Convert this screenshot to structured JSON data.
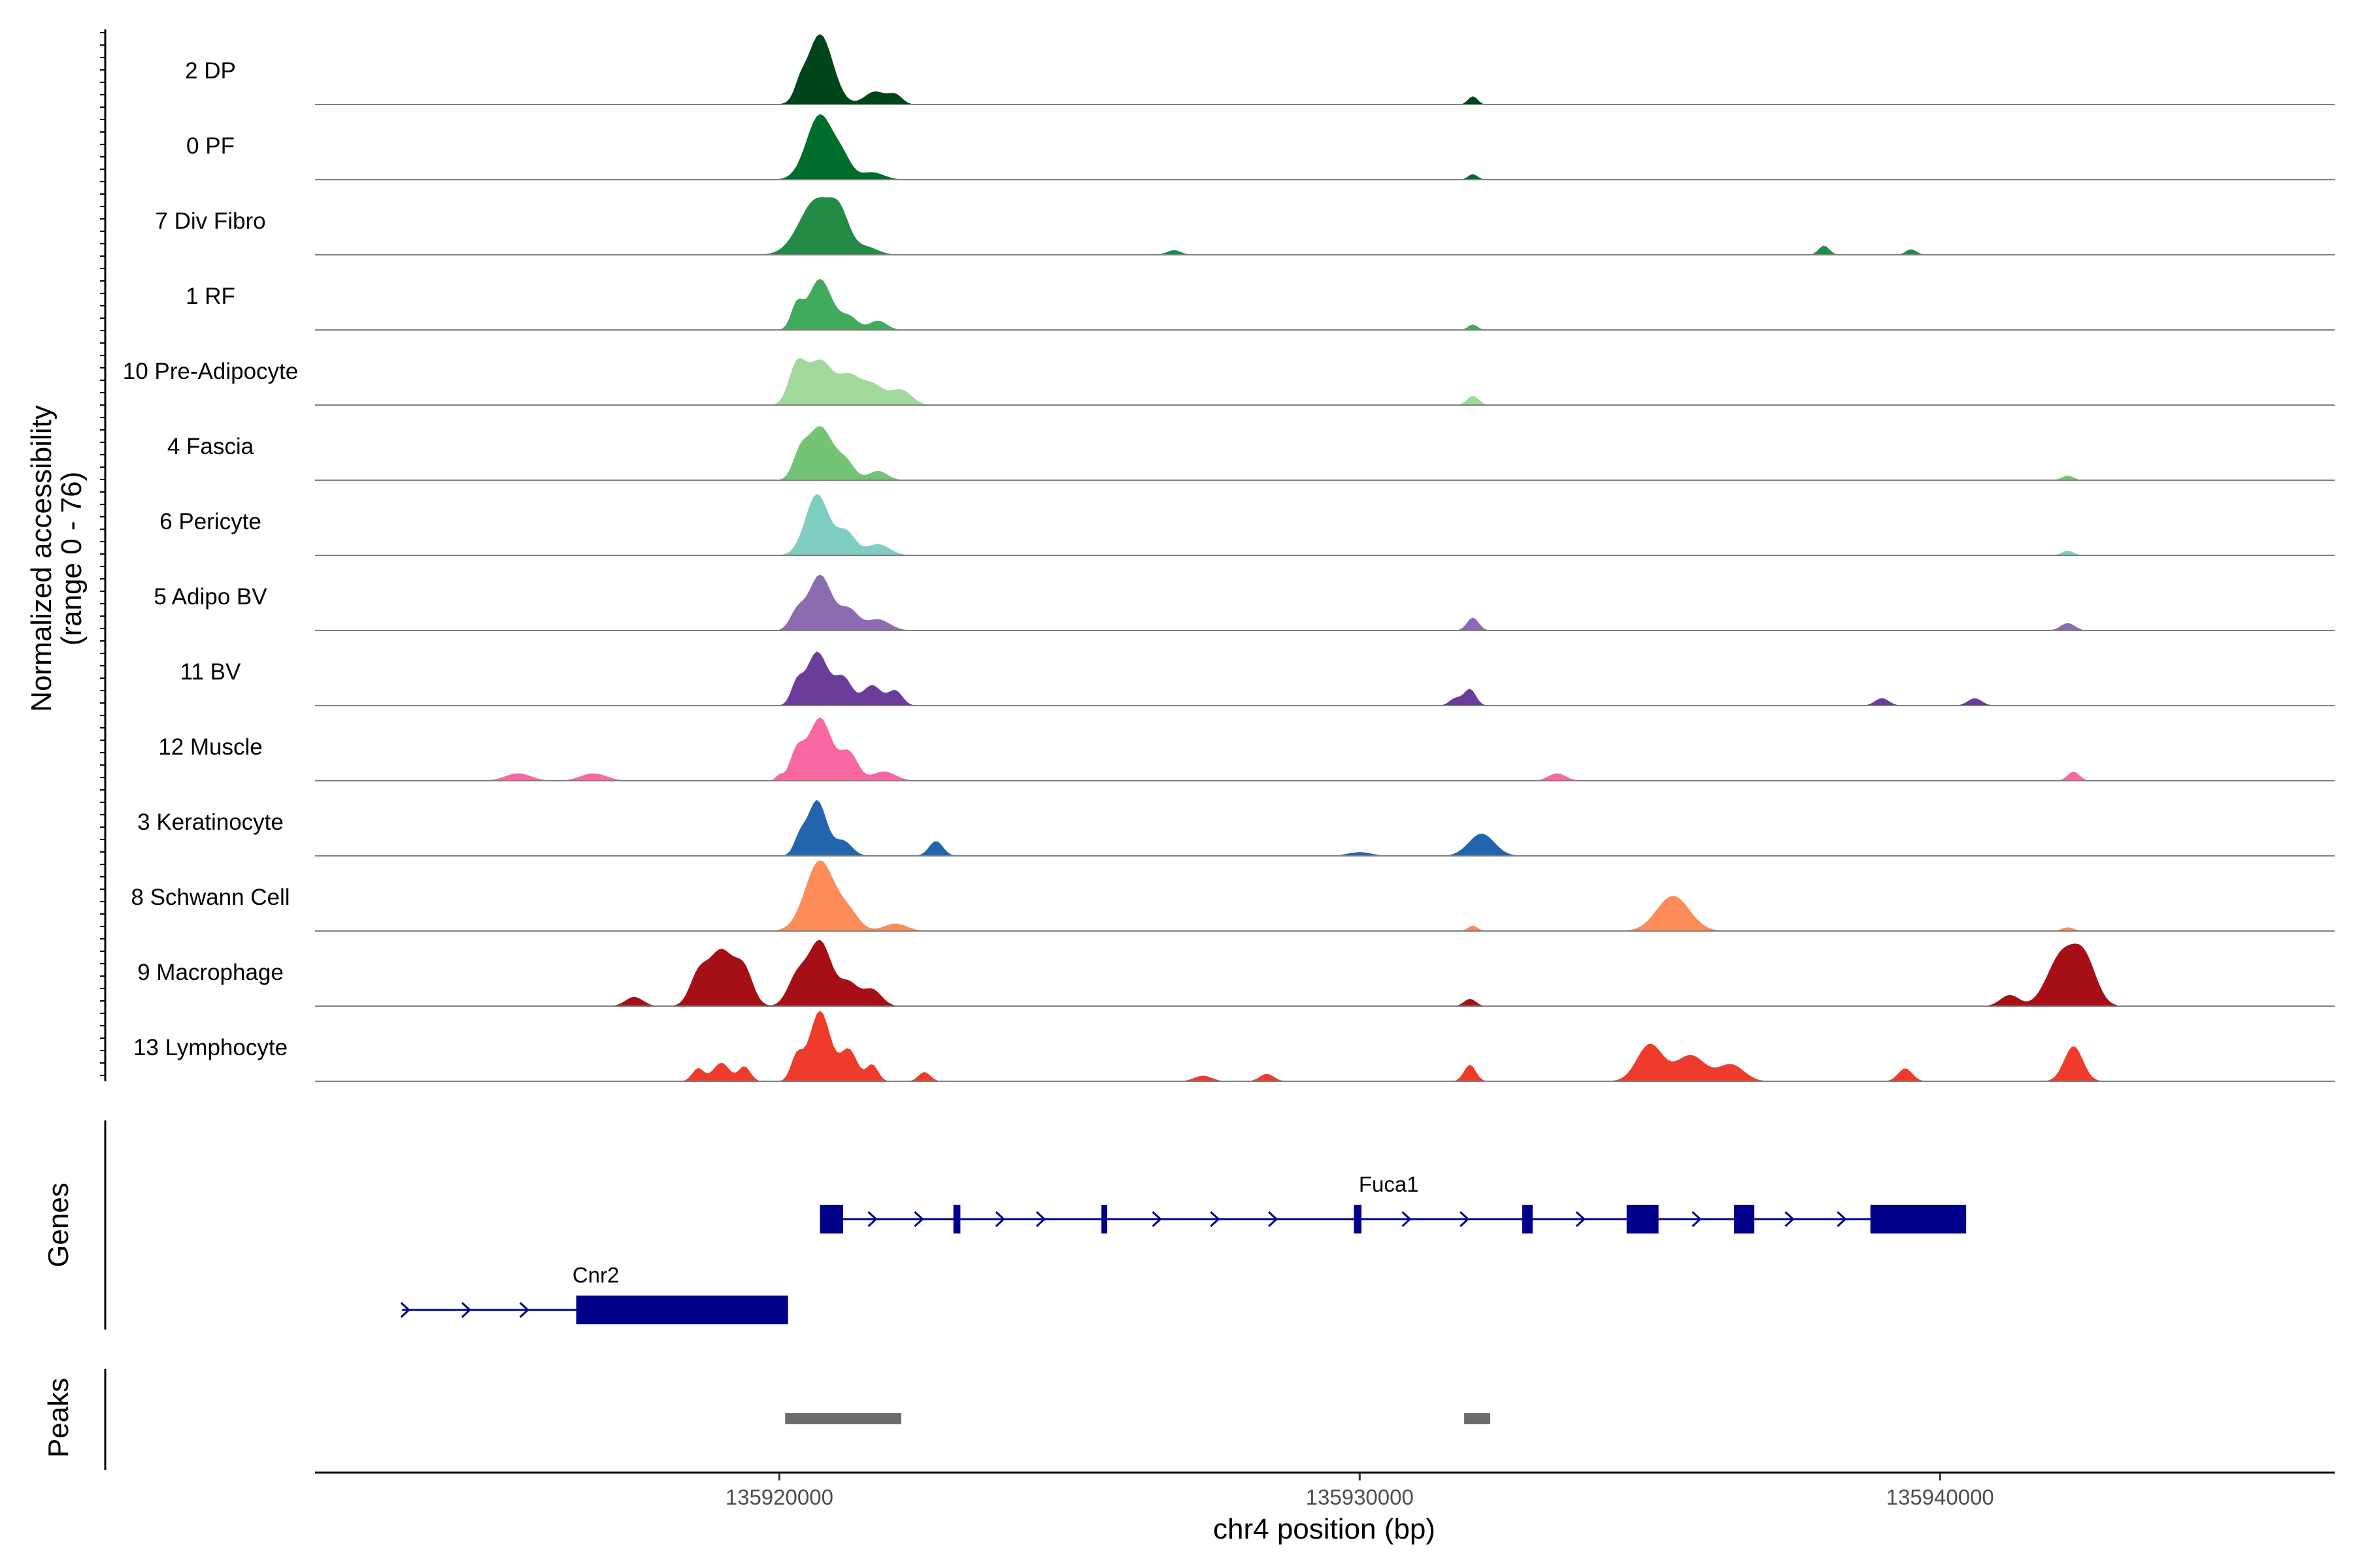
{
  "chart_data": {
    "type": "area",
    "title": "",
    "chromosome": "chr4",
    "xlabel": "chr4 position (bp)",
    "ylabel": "Normalized accessibility",
    "ylabel2": "(range 0 - 76)",
    "y_range": [
      0,
      76
    ],
    "xlim": [
      135912000,
      135946800
    ],
    "x_ticks": [
      135920000,
      135930000,
      135940000
    ],
    "x_tick_labels": [
      "135920000",
      "135930000",
      "135940000"
    ],
    "tracks": [
      {
        "name": "2 DP",
        "color": "#00441b",
        "peaks": [
          [
            135920700,
            76,
            220
          ],
          [
            135920350,
            12,
            90
          ],
          [
            135921650,
            14,
            180
          ],
          [
            135922000,
            10,
            120
          ],
          [
            135931950,
            9,
            80
          ]
        ]
      },
      {
        "name": "0 PF",
        "color": "#006d2c",
        "peaks": [
          [
            135920700,
            70,
            230
          ],
          [
            135921100,
            18,
            150
          ],
          [
            135921600,
            8,
            200
          ],
          [
            135931950,
            6,
            80
          ]
        ]
      },
      {
        "name": "7 Div Fibro",
        "color": "#238b45",
        "peaks": [
          [
            135920650,
            60,
            300
          ],
          [
            135921050,
            30,
            160
          ],
          [
            135921500,
            8,
            200
          ],
          [
            135938000,
            10,
            90
          ],
          [
            135939500,
            6,
            90
          ],
          [
            135926800,
            5,
            120
          ]
        ]
      },
      {
        "name": "1 RF",
        "color": "#41ab5d",
        "peaks": [
          [
            135920300,
            25,
            100
          ],
          [
            135920700,
            55,
            200
          ],
          [
            135921200,
            14,
            150
          ],
          [
            135921700,
            10,
            150
          ],
          [
            135931950,
            6,
            80
          ]
        ]
      },
      {
        "name": "10 Pre-Adipocyte",
        "color": "#a1d99b",
        "peaks": [
          [
            135920300,
            40,
            140
          ],
          [
            135920700,
            48,
            220
          ],
          [
            135921200,
            28,
            180
          ],
          [
            135921600,
            22,
            200
          ],
          [
            135922100,
            16,
            180
          ],
          [
            135931950,
            10,
            100
          ]
        ]
      },
      {
        "name": "4 Fascia",
        "color": "#74c476",
        "peaks": [
          [
            135920350,
            22,
            120
          ],
          [
            135920700,
            58,
            220
          ],
          [
            135921150,
            18,
            150
          ],
          [
            135921700,
            10,
            160
          ],
          [
            135942200,
            5,
            100
          ]
        ]
      },
      {
        "name": "6 Pericyte",
        "color": "#80cdc1",
        "peaks": [
          [
            135920650,
            66,
            200
          ],
          [
            135921150,
            25,
            160
          ],
          [
            135921700,
            12,
            200
          ],
          [
            135942200,
            5,
            100
          ]
        ]
      },
      {
        "name": "5 Adipo BV",
        "color": "#8c6bb1",
        "peaks": [
          [
            135920300,
            18,
            120
          ],
          [
            135920700,
            60,
            200
          ],
          [
            135921200,
            22,
            160
          ],
          [
            135921700,
            12,
            200
          ],
          [
            135931950,
            14,
            100
          ],
          [
            135942200,
            8,
            120
          ]
        ]
      },
      {
        "name": "11 BV",
        "color": "#6a3d9a",
        "peaks": [
          [
            135920300,
            22,
            100
          ],
          [
            135920650,
            58,
            180
          ],
          [
            135921100,
            30,
            150
          ],
          [
            135921600,
            22,
            160
          ],
          [
            135922000,
            16,
            120
          ],
          [
            135931900,
            18,
            100
          ],
          [
            135931650,
            8,
            100
          ],
          [
            135939000,
            8,
            120
          ],
          [
            135940600,
            8,
            120
          ]
        ]
      },
      {
        "name": "12 Muscle",
        "color": "#f768a1",
        "peaks": [
          [
            135920300,
            30,
            120
          ],
          [
            135920700,
            68,
            200
          ],
          [
            135921200,
            30,
            150
          ],
          [
            135921800,
            10,
            200
          ],
          [
            135915500,
            8,
            220
          ],
          [
            135916800,
            8,
            220
          ],
          [
            135920000,
            6,
            60
          ],
          [
            135933400,
            8,
            150
          ],
          [
            135942300,
            10,
            100
          ]
        ]
      },
      {
        "name": "3 Keratinocyte",
        "color": "#2166ac",
        "peaks": [
          [
            135920350,
            18,
            100
          ],
          [
            135920650,
            60,
            160
          ],
          [
            135921100,
            16,
            150
          ],
          [
            135922700,
            16,
            120
          ],
          [
            135932100,
            24,
            220
          ],
          [
            135930000,
            4,
            200
          ]
        ]
      },
      {
        "name": "8 Schwann Cell",
        "color": "#fc8d59",
        "peaks": [
          [
            135920700,
            76,
            250
          ],
          [
            135921200,
            18,
            180
          ],
          [
            135922000,
            8,
            200
          ],
          [
            135935400,
            38,
            280
          ],
          [
            135931950,
            6,
            80
          ],
          [
            135942200,
            4,
            100
          ]
        ]
      },
      {
        "name": "9 Macrophage",
        "color": "#a50f15",
        "peaks": [
          [
            135919000,
            60,
            220
          ],
          [
            135918600,
            30,
            150
          ],
          [
            135919400,
            35,
            150
          ],
          [
            135920300,
            30,
            160
          ],
          [
            135920700,
            70,
            200
          ],
          [
            135921200,
            24,
            160
          ],
          [
            135921600,
            18,
            160
          ],
          [
            135942100,
            55,
            250
          ],
          [
            135942500,
            45,
            200
          ],
          [
            135941200,
            12,
            160
          ],
          [
            135917500,
            10,
            150
          ],
          [
            135931900,
            8,
            100
          ]
        ]
      },
      {
        "name": "13 Lymphocyte",
        "color": "#ef3b2c",
        "peaks": [
          [
            135920700,
            76,
            180
          ],
          [
            135920300,
            26,
            100
          ],
          [
            135921200,
            34,
            140
          ],
          [
            135921600,
            18,
            100
          ],
          [
            135919000,
            20,
            140
          ],
          [
            135918600,
            14,
            100
          ],
          [
            135919400,
            16,
            100
          ],
          [
            135922500,
            10,
            100
          ],
          [
            135935000,
            40,
            220
          ],
          [
            135935700,
            28,
            250
          ],
          [
            135936400,
            18,
            220
          ],
          [
            135931900,
            18,
            100
          ],
          [
            135939400,
            14,
            120
          ],
          [
            135942300,
            38,
            160
          ],
          [
            135927300,
            6,
            150
          ],
          [
            135928400,
            8,
            120
          ]
        ]
      }
    ],
    "genes_panel": {
      "label": "Genes",
      "genes": [
        {
          "name": "Fuca1",
          "start": 135920700,
          "end": 135940450,
          "strand": "+",
          "row": 0,
          "exons": [
            [
              135920700,
              135921100
            ],
            [
              135923000,
              135923120
            ],
            [
              135925550,
              135925650
            ],
            [
              135929900,
              135930030
            ],
            [
              135932800,
              135932980
            ],
            [
              135934600,
              135935150
            ],
            [
              135936450,
              135936800
            ],
            [
              135938800,
              135940450
            ]
          ],
          "arrows": [
            135921600,
            135922400,
            135923800,
            135924500,
            135926500,
            135927500,
            135928500,
            135930800,
            135931800,
            135933800,
            135935800,
            135937400,
            135938300
          ]
        },
        {
          "name": "Cnr2",
          "start": 135913500,
          "end": 135920150,
          "strand": "+",
          "row": 1,
          "exons": [
            [
              135916500,
              135920150
            ]
          ],
          "arrows": [
            135913550,
            135914600,
            135915600
          ]
        }
      ]
    },
    "peaks_panel": {
      "label": "Peaks",
      "regions": [
        [
          135920100,
          135922100
        ],
        [
          135931800,
          135932250
        ]
      ]
    }
  }
}
